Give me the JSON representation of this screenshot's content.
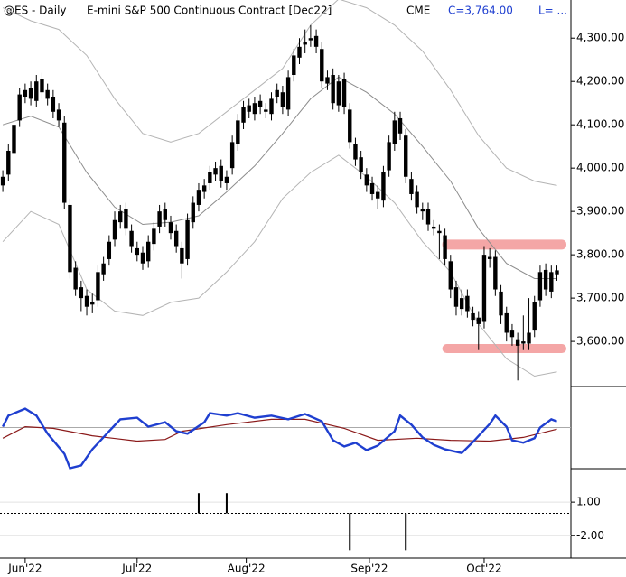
{
  "header": {
    "symbol": "@ES - Daily",
    "name": "E-mini S&P 500 Continuous Contract [Dec22]",
    "exchange": "CME",
    "last": "C=3,764.00",
    "low": "L= ..."
  },
  "chart_data": [
    {
      "type": "candlestick",
      "color": "#000000",
      "open": [
        3960,
        3985,
        4035,
        4110,
        4165,
        4185,
        4155,
        4205,
        4180,
        4165,
        4135,
        4105,
        3915,
        3770,
        3725,
        3705,
        3685,
        3695,
        3755,
        3790,
        3835,
        3875,
        3905,
        3855,
        3815,
        3805,
        3785,
        3825,
        3865,
        3905,
        3875,
        3855,
        3815,
        3790,
        3875,
        3915,
        3945,
        3965,
        3985,
        4005,
        3965,
        4000,
        4055,
        4105,
        4145,
        4125,
        4155,
        4135,
        4125,
        4165,
        4175,
        4135,
        4215,
        4255,
        4285,
        4295,
        4305,
        4275,
        4195,
        4215,
        4145,
        4205,
        4135,
        4055,
        4025,
        3985,
        3965,
        3945,
        3925,
        3995,
        4055,
        4115,
        4075,
        3975,
        3945,
        3905,
        3905,
        3865,
        3855,
        3845,
        3785,
        3725,
        3675,
        3705,
        3665,
        3655,
        3645,
        3795,
        3795,
        3715,
        3665,
        3625,
        3605,
        3595,
        3595,
        3625,
        3695,
        3765,
        3715,
        3755
      ],
      "high": [
        3995,
        4055,
        4115,
        4185,
        4195,
        4200,
        4215,
        4220,
        4195,
        4180,
        4150,
        4120,
        3930,
        3785,
        3740,
        3720,
        3710,
        3775,
        3795,
        3845,
        3900,
        3915,
        3920,
        3870,
        3830,
        3820,
        3845,
        3875,
        3915,
        3920,
        3890,
        3870,
        3830,
        3895,
        3935,
        3965,
        3975,
        4005,
        4015,
        4020,
        3995,
        4075,
        4125,
        4155,
        4160,
        4165,
        4170,
        4150,
        4175,
        4195,
        4190,
        4225,
        4275,
        4300,
        4320,
        4330,
        4320,
        4290,
        4225,
        4230,
        4215,
        4220,
        4150,
        4070,
        4040,
        4000,
        3980,
        3960,
        4005,
        4075,
        4130,
        4130,
        4090,
        3990,
        3960,
        3920,
        3920,
        3880,
        3870,
        3860,
        3800,
        3740,
        3720,
        3720,
        3680,
        3670,
        3820,
        3815,
        3810,
        3730,
        3680,
        3640,
        3620,
        3660,
        3700,
        3705,
        3775,
        3780,
        3775,
        3775
      ],
      "low": [
        3945,
        3970,
        4020,
        4095,
        4150,
        4145,
        4140,
        4160,
        4145,
        4115,
        4095,
        3905,
        3745,
        3705,
        3670,
        3660,
        3665,
        3680,
        3740,
        3775,
        3820,
        3860,
        3845,
        3805,
        3785,
        3765,
        3770,
        3810,
        3850,
        3865,
        3835,
        3805,
        3745,
        3775,
        3860,
        3900,
        3930,
        3950,
        3970,
        3955,
        3950,
        3985,
        4040,
        4090,
        4115,
        4110,
        4125,
        4115,
        4110,
        4150,
        4125,
        4120,
        4200,
        4240,
        4265,
        4280,
        4265,
        4185,
        4180,
        4135,
        4130,
        4125,
        4045,
        4005,
        3975,
        3945,
        3925,
        3905,
        3910,
        3980,
        4040,
        4065,
        3965,
        3925,
        3895,
        3880,
        3855,
        3845,
        3790,
        3775,
        3700,
        3660,
        3660,
        3655,
        3635,
        3580,
        3630,
        3770,
        3705,
        3640,
        3600,
        3590,
        3510,
        3580,
        3580,
        3610,
        3680,
        3705,
        3700,
        3740
      ],
      "close": [
        3980,
        4040,
        4100,
        4170,
        4180,
        4160,
        4200,
        4175,
        4160,
        4130,
        4110,
        3920,
        3760,
        3720,
        3700,
        3680,
        3690,
        3760,
        3780,
        3830,
        3880,
        3900,
        3860,
        3820,
        3800,
        3780,
        3830,
        3860,
        3900,
        3880,
        3850,
        3820,
        3780,
        3880,
        3920,
        3950,
        3960,
        3990,
        4000,
        3970,
        3980,
        4060,
        4110,
        4140,
        4130,
        4150,
        4140,
        4130,
        4160,
        4180,
        4140,
        4210,
        4260,
        4280,
        4290,
        4300,
        4280,
        4200,
        4210,
        4150,
        4200,
        4140,
        4060,
        4020,
        3990,
        3960,
        3940,
        3930,
        3990,
        4060,
        4110,
        4080,
        3980,
        3940,
        3910,
        3900,
        3870,
        3860,
        3850,
        3790,
        3720,
        3680,
        3700,
        3670,
        3650,
        3640,
        3800,
        3790,
        3720,
        3660,
        3620,
        3610,
        3590,
        3600,
        3620,
        3690,
        3760,
        3720,
        3760,
        3764
      ],
      "series": [
        {
          "color": "#b4b4b4",
          "x": [
            0,
            5,
            10,
            15,
            20,
            25,
            30,
            35,
            40,
            45,
            50,
            55,
            60,
            65,
            70,
            75,
            80,
            85,
            90,
            95,
            99
          ],
          "values": [
            4370,
            4340,
            4320,
            4260,
            4160,
            4080,
            4060,
            4080,
            4130,
            4180,
            4230,
            4330,
            4390,
            4370,
            4330,
            4270,
            4180,
            4075,
            4000,
            3970,
            3960
          ]
        },
        {
          "color": "#8c8c8c",
          "x": [
            0,
            5,
            10,
            15,
            20,
            25,
            30,
            35,
            40,
            45,
            50,
            55,
            60,
            65,
            70,
            75,
            80,
            85,
            90,
            95,
            99
          ],
          "values": [
            4100,
            4120,
            4095,
            3990,
            3910,
            3870,
            3875,
            3890,
            3945,
            4005,
            4080,
            4160,
            4210,
            4175,
            4125,
            4050,
            3970,
            3860,
            3780,
            3745,
            3745
          ]
        },
        {
          "color": "#b4b4b4",
          "x": [
            0,
            5,
            10,
            15,
            20,
            25,
            30,
            35,
            40,
            45,
            50,
            55,
            60,
            65,
            70,
            75,
            80,
            85,
            90,
            95,
            99
          ],
          "values": [
            3830,
            3900,
            3870,
            3720,
            3670,
            3660,
            3690,
            3700,
            3760,
            3830,
            3930,
            3990,
            4030,
            3980,
            3920,
            3830,
            3760,
            3640,
            3560,
            3520,
            3530
          ]
        }
      ],
      "zones": [
        {
          "low": 3812,
          "high": 3835,
          "start": 79,
          "color": "#f4a6a6"
        },
        {
          "low": 3573,
          "high": 3594,
          "start": 79,
          "color": "#f4a6a6"
        }
      ],
      "xlim": [
        -0.5,
        101.5
      ],
      "xticks": [
        {
          "value": 4,
          "label": "Jun'22"
        },
        {
          "value": 24,
          "label": "Jul'22"
        },
        {
          "value": 43.5,
          "label": "Aug'22"
        },
        {
          "value": 65.5,
          "label": "Sep'22"
        },
        {
          "value": 86,
          "label": "Oct'22"
        }
      ],
      "ylim": [
        3496,
        4388
      ],
      "yticks": [
        {
          "value": 3600,
          "label": "3,600.00"
        },
        {
          "value": 3700,
          "label": "3,700.00"
        },
        {
          "value": 3800,
          "label": "3,800.00"
        },
        {
          "value": 3900,
          "label": "3,900.00"
        },
        {
          "value": 4000,
          "label": "4,000.00"
        },
        {
          "value": 4100,
          "label": "4,100.00"
        },
        {
          "value": 4200,
          "label": "4,200.00"
        },
        {
          "value": 4300,
          "label": "4,300.00"
        }
      ]
    },
    {
      "type": "line",
      "ylim": [
        -1,
        1
      ],
      "baseline": 0,
      "series": [
        {
          "color": "#1f3fd0",
          "x": [
            0,
            1,
            4,
            6,
            8,
            11,
            12,
            14,
            16,
            19,
            21,
            24,
            26,
            29,
            31,
            33,
            36,
            37,
            40,
            42,
            45,
            48,
            51,
            54,
            57,
            59,
            61,
            63,
            65,
            67,
            70,
            71,
            73,
            75,
            77,
            79,
            82,
            84,
            87,
            88,
            90,
            91,
            93,
            95,
            96,
            98,
            99
          ],
          "values": [
            0.02,
            0.29,
            0.46,
            0.29,
            -0.15,
            -0.64,
            -0.99,
            -0.92,
            -0.53,
            -0.09,
            0.2,
            0.24,
            0.02,
            0.13,
            -0.09,
            -0.15,
            0.13,
            0.35,
            0.29,
            0.35,
            0.24,
            0.29,
            0.2,
            0.33,
            0.15,
            -0.31,
            -0.46,
            -0.37,
            -0.55,
            -0.44,
            -0.09,
            0.29,
            0.07,
            -0.24,
            -0.42,
            -0.53,
            -0.62,
            -0.35,
            0.09,
            0.29,
            0.02,
            -0.31,
            -0.37,
            -0.26,
            0,
            0.2,
            0.15
          ]
        },
        {
          "color": "#8b1a1a",
          "x": [
            0,
            4,
            9,
            16,
            24,
            29,
            32,
            40,
            48,
            54,
            61,
            67,
            74,
            80,
            87,
            93,
            99
          ],
          "values": [
            -0.26,
            0.02,
            -0.02,
            -0.2,
            -0.33,
            -0.29,
            -0.09,
            0.07,
            0.2,
            0.2,
            -0.02,
            -0.31,
            -0.26,
            -0.31,
            -0.33,
            -0.24,
            -0.04
          ]
        }
      ]
    },
    {
      "type": "bar",
      "color": "#000000",
      "x": [
        35,
        40,
        62,
        72
      ],
      "values": [
        1.8,
        1.8,
        -3.3,
        -3.3
      ],
      "ylim": [
        -4,
        4
      ],
      "yticks": [
        {
          "value": 1,
          "label": "1.00"
        },
        {
          "value": -2,
          "label": "-2.00"
        }
      ]
    }
  ]
}
